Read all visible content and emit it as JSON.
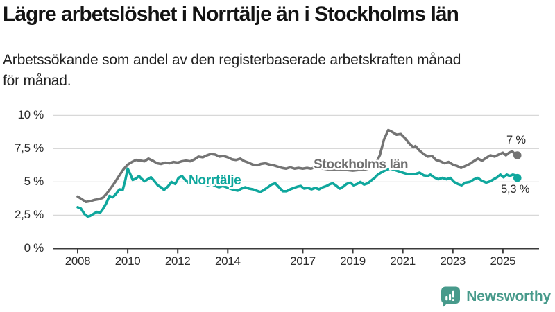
{
  "header": {
    "title": "Lägre arbetslöshet i Norrtälje än i Stockholms län",
    "subtitle_line1": "Arbetssökande som andel av den registerbaserade arbetskraften månad",
    "subtitle_line2": "för månad."
  },
  "chart_data": {
    "type": "line",
    "title": "Lägre arbetslöshet i Norrtälje än i Stockholms län",
    "subtitle": "Arbetssökande som andel av den registerbaserade arbetskraften månad för månad.",
    "unit": "%",
    "grid": "horizontal-only",
    "x_axis": {
      "range": [
        2007.85,
        2026.3
      ],
      "ticks": [
        {
          "label": "2008",
          "year": 2008
        },
        {
          "label": "2010",
          "year": 2010
        },
        {
          "label": "2012",
          "year": 2012
        },
        {
          "label": "2014",
          "year": 2014
        },
        {
          "label": "2017",
          "year": 2017
        },
        {
          "label": "2019",
          "year": 2019
        },
        {
          "label": "2021",
          "year": 2021
        },
        {
          "label": "2023",
          "year": 2023
        },
        {
          "label": "2025",
          "year": 2025
        }
      ]
    },
    "y_axis": {
      "range": [
        0,
        10
      ],
      "ticks": [
        {
          "label": "10 %",
          "value": 10
        },
        {
          "label": "7,5 %",
          "value": 7.5
        },
        {
          "label": "5 %",
          "value": 5
        },
        {
          "label": "2,5 %",
          "value": 2.5
        },
        {
          "label": "0 %",
          "value": 0
        }
      ]
    },
    "colors": {
      "grid": "#d8d8d8",
      "axis": "#3b3b3b",
      "tick_text": "#2b2b2b"
    },
    "series": [
      {
        "name": "Stockholms län",
        "color": "#747474",
        "end_label": "7 %",
        "end_value": 7.0,
        "points": [
          [
            2008.0,
            3.9
          ],
          [
            2008.17,
            3.7
          ],
          [
            2008.33,
            3.5
          ],
          [
            2008.5,
            3.55
          ],
          [
            2008.67,
            3.65
          ],
          [
            2008.83,
            3.7
          ],
          [
            2009.0,
            3.8
          ],
          [
            2009.17,
            4.15
          ],
          [
            2009.33,
            4.55
          ],
          [
            2009.5,
            5.0
          ],
          [
            2009.67,
            5.5
          ],
          [
            2009.83,
            5.95
          ],
          [
            2010.0,
            6.3
          ],
          [
            2010.17,
            6.5
          ],
          [
            2010.33,
            6.65
          ],
          [
            2010.5,
            6.6
          ],
          [
            2010.67,
            6.55
          ],
          [
            2010.83,
            6.75
          ],
          [
            2011.0,
            6.6
          ],
          [
            2011.17,
            6.4
          ],
          [
            2011.33,
            6.35
          ],
          [
            2011.5,
            6.45
          ],
          [
            2011.67,
            6.4
          ],
          [
            2011.83,
            6.5
          ],
          [
            2012.0,
            6.45
          ],
          [
            2012.17,
            6.55
          ],
          [
            2012.33,
            6.6
          ],
          [
            2012.5,
            6.55
          ],
          [
            2012.67,
            6.7
          ],
          [
            2012.83,
            6.9
          ],
          [
            2013.0,
            6.85
          ],
          [
            2013.17,
            7.0
          ],
          [
            2013.33,
            7.1
          ],
          [
            2013.5,
            7.05
          ],
          [
            2013.67,
            6.9
          ],
          [
            2013.83,
            6.95
          ],
          [
            2014.0,
            6.85
          ],
          [
            2014.17,
            6.7
          ],
          [
            2014.33,
            6.65
          ],
          [
            2014.5,
            6.75
          ],
          [
            2014.67,
            6.55
          ],
          [
            2014.83,
            6.45
          ],
          [
            2015.0,
            6.3
          ],
          [
            2015.17,
            6.25
          ],
          [
            2015.33,
            6.35
          ],
          [
            2015.5,
            6.4
          ],
          [
            2015.67,
            6.3
          ],
          [
            2015.83,
            6.25
          ],
          [
            2016.0,
            6.15
          ],
          [
            2016.17,
            6.05
          ],
          [
            2016.33,
            6.0
          ],
          [
            2016.5,
            6.1
          ],
          [
            2016.67,
            6.0
          ],
          [
            2016.83,
            6.05
          ],
          [
            2017.0,
            6.0
          ],
          [
            2017.17,
            6.05
          ],
          [
            2017.33,
            6.0
          ],
          [
            2017.5,
            6.1
          ],
          [
            2017.67,
            6.05
          ],
          [
            2017.83,
            6.0
          ],
          [
            2018.0,
            5.95
          ],
          [
            2018.25,
            5.9
          ],
          [
            2018.5,
            5.95
          ],
          [
            2018.75,
            5.9
          ],
          [
            2019.0,
            5.85
          ],
          [
            2019.25,
            5.9
          ],
          [
            2019.5,
            5.95
          ],
          [
            2019.75,
            6.05
          ],
          [
            2019.92,
            6.4
          ],
          [
            2020.08,
            7.0
          ],
          [
            2020.25,
            8.2
          ],
          [
            2020.42,
            8.9
          ],
          [
            2020.58,
            8.75
          ],
          [
            2020.75,
            8.55
          ],
          [
            2020.92,
            8.6
          ],
          [
            2021.08,
            8.3
          ],
          [
            2021.25,
            7.9
          ],
          [
            2021.42,
            7.6
          ],
          [
            2021.5,
            7.7
          ],
          [
            2021.67,
            7.35
          ],
          [
            2021.83,
            7.1
          ],
          [
            2022.0,
            6.9
          ],
          [
            2022.17,
            6.95
          ],
          [
            2022.33,
            6.65
          ],
          [
            2022.5,
            6.55
          ],
          [
            2022.67,
            6.4
          ],
          [
            2022.83,
            6.5
          ],
          [
            2023.0,
            6.3
          ],
          [
            2023.17,
            6.2
          ],
          [
            2023.33,
            6.05
          ],
          [
            2023.5,
            6.2
          ],
          [
            2023.67,
            6.35
          ],
          [
            2023.83,
            6.55
          ],
          [
            2024.0,
            6.75
          ],
          [
            2024.17,
            6.6
          ],
          [
            2024.33,
            6.8
          ],
          [
            2024.5,
            7.0
          ],
          [
            2024.67,
            6.9
          ],
          [
            2024.83,
            7.05
          ],
          [
            2025.0,
            7.2
          ],
          [
            2025.12,
            7.0
          ],
          [
            2025.25,
            7.2
          ],
          [
            2025.37,
            7.3
          ],
          [
            2025.48,
            7.1
          ],
          [
            2025.58,
            7.0
          ]
        ]
      },
      {
        "name": "Norrtälje",
        "color": "#0fa79d",
        "end_label": "5,3 %",
        "end_value": 5.3,
        "points": [
          [
            2008.0,
            3.1
          ],
          [
            2008.13,
            3.0
          ],
          [
            2008.27,
            2.6
          ],
          [
            2008.4,
            2.4
          ],
          [
            2008.5,
            2.45
          ],
          [
            2008.63,
            2.6
          ],
          [
            2008.77,
            2.75
          ],
          [
            2008.9,
            2.7
          ],
          [
            2009.0,
            2.95
          ],
          [
            2009.13,
            3.35
          ],
          [
            2009.27,
            3.95
          ],
          [
            2009.4,
            3.85
          ],
          [
            2009.53,
            4.1
          ],
          [
            2009.67,
            4.45
          ],
          [
            2009.8,
            4.4
          ],
          [
            2009.9,
            5.1
          ],
          [
            2010.0,
            6.0
          ],
          [
            2010.1,
            5.6
          ],
          [
            2010.2,
            5.15
          ],
          [
            2010.33,
            5.25
          ],
          [
            2010.45,
            5.45
          ],
          [
            2010.55,
            5.25
          ],
          [
            2010.67,
            5.05
          ],
          [
            2010.8,
            5.2
          ],
          [
            2010.93,
            5.35
          ],
          [
            2011.05,
            5.1
          ],
          [
            2011.2,
            4.75
          ],
          [
            2011.33,
            4.6
          ],
          [
            2011.45,
            4.4
          ],
          [
            2011.6,
            4.65
          ],
          [
            2011.75,
            5.0
          ],
          [
            2011.9,
            4.85
          ],
          [
            2012.03,
            5.3
          ],
          [
            2012.17,
            5.45
          ],
          [
            2012.3,
            5.15
          ],
          [
            2012.45,
            4.9
          ],
          [
            2012.6,
            5.0
          ],
          [
            2012.75,
            4.9
          ],
          [
            2012.9,
            5.0
          ],
          [
            2013.05,
            4.85
          ],
          [
            2013.2,
            4.75
          ],
          [
            2013.35,
            4.85
          ],
          [
            2013.5,
            4.7
          ],
          [
            2013.65,
            4.6
          ],
          [
            2013.8,
            4.7
          ],
          [
            2013.95,
            4.6
          ],
          [
            2014.1,
            4.5
          ],
          [
            2014.25,
            4.4
          ],
          [
            2014.4,
            4.35
          ],
          [
            2014.55,
            4.5
          ],
          [
            2014.7,
            4.6
          ],
          [
            2014.85,
            4.5
          ],
          [
            2015.0,
            4.45
          ],
          [
            2015.15,
            4.35
          ],
          [
            2015.3,
            4.25
          ],
          [
            2015.45,
            4.4
          ],
          [
            2015.6,
            4.6
          ],
          [
            2015.75,
            4.8
          ],
          [
            2015.9,
            4.9
          ],
          [
            2016.05,
            4.6
          ],
          [
            2016.2,
            4.3
          ],
          [
            2016.35,
            4.3
          ],
          [
            2016.5,
            4.45
          ],
          [
            2016.65,
            4.55
          ],
          [
            2016.8,
            4.65
          ],
          [
            2016.92,
            4.7
          ],
          [
            2017.05,
            4.5
          ],
          [
            2017.2,
            4.55
          ],
          [
            2017.35,
            4.45
          ],
          [
            2017.5,
            4.55
          ],
          [
            2017.65,
            4.45
          ],
          [
            2017.8,
            4.6
          ],
          [
            2017.95,
            4.7
          ],
          [
            2018.1,
            4.85
          ],
          [
            2018.2,
            4.9
          ],
          [
            2018.35,
            4.7
          ],
          [
            2018.48,
            4.5
          ],
          [
            2018.62,
            4.65
          ],
          [
            2018.75,
            4.85
          ],
          [
            2018.9,
            4.95
          ],
          [
            2019.03,
            4.75
          ],
          [
            2019.17,
            4.85
          ],
          [
            2019.3,
            5.0
          ],
          [
            2019.45,
            4.8
          ],
          [
            2019.6,
            4.9
          ],
          [
            2019.73,
            5.1
          ],
          [
            2019.87,
            5.3
          ],
          [
            2020.0,
            5.55
          ],
          [
            2020.17,
            5.75
          ],
          [
            2020.33,
            5.9
          ],
          [
            2020.5,
            6.0
          ],
          [
            2020.67,
            5.9
          ],
          [
            2020.83,
            5.8
          ],
          [
            2021.0,
            5.7
          ],
          [
            2021.17,
            5.6
          ],
          [
            2021.33,
            5.6
          ],
          [
            2021.5,
            5.6
          ],
          [
            2021.67,
            5.7
          ],
          [
            2021.83,
            5.5
          ],
          [
            2022.0,
            5.45
          ],
          [
            2022.1,
            5.55
          ],
          [
            2022.25,
            5.35
          ],
          [
            2022.42,
            5.2
          ],
          [
            2022.58,
            5.3
          ],
          [
            2022.75,
            5.2
          ],
          [
            2022.9,
            5.3
          ],
          [
            2023.05,
            5.0
          ],
          [
            2023.2,
            4.85
          ],
          [
            2023.35,
            4.75
          ],
          [
            2023.5,
            4.95
          ],
          [
            2023.67,
            5.0
          ],
          [
            2023.85,
            5.2
          ],
          [
            2024.0,
            5.3
          ],
          [
            2024.15,
            5.1
          ],
          [
            2024.33,
            4.95
          ],
          [
            2024.5,
            5.05
          ],
          [
            2024.63,
            5.2
          ],
          [
            2024.77,
            5.35
          ],
          [
            2024.9,
            5.55
          ],
          [
            2025.03,
            5.35
          ],
          [
            2025.15,
            5.55
          ],
          [
            2025.28,
            5.45
          ],
          [
            2025.4,
            5.55
          ],
          [
            2025.5,
            5.5
          ],
          [
            2025.58,
            5.3
          ]
        ]
      }
    ],
    "legend_position": "inline-labels"
  },
  "footer": {
    "brand": "Newsworthy",
    "brand_color": "#479a8b",
    "logo_icon": "bar-chart-speech-bubble-icon"
  }
}
